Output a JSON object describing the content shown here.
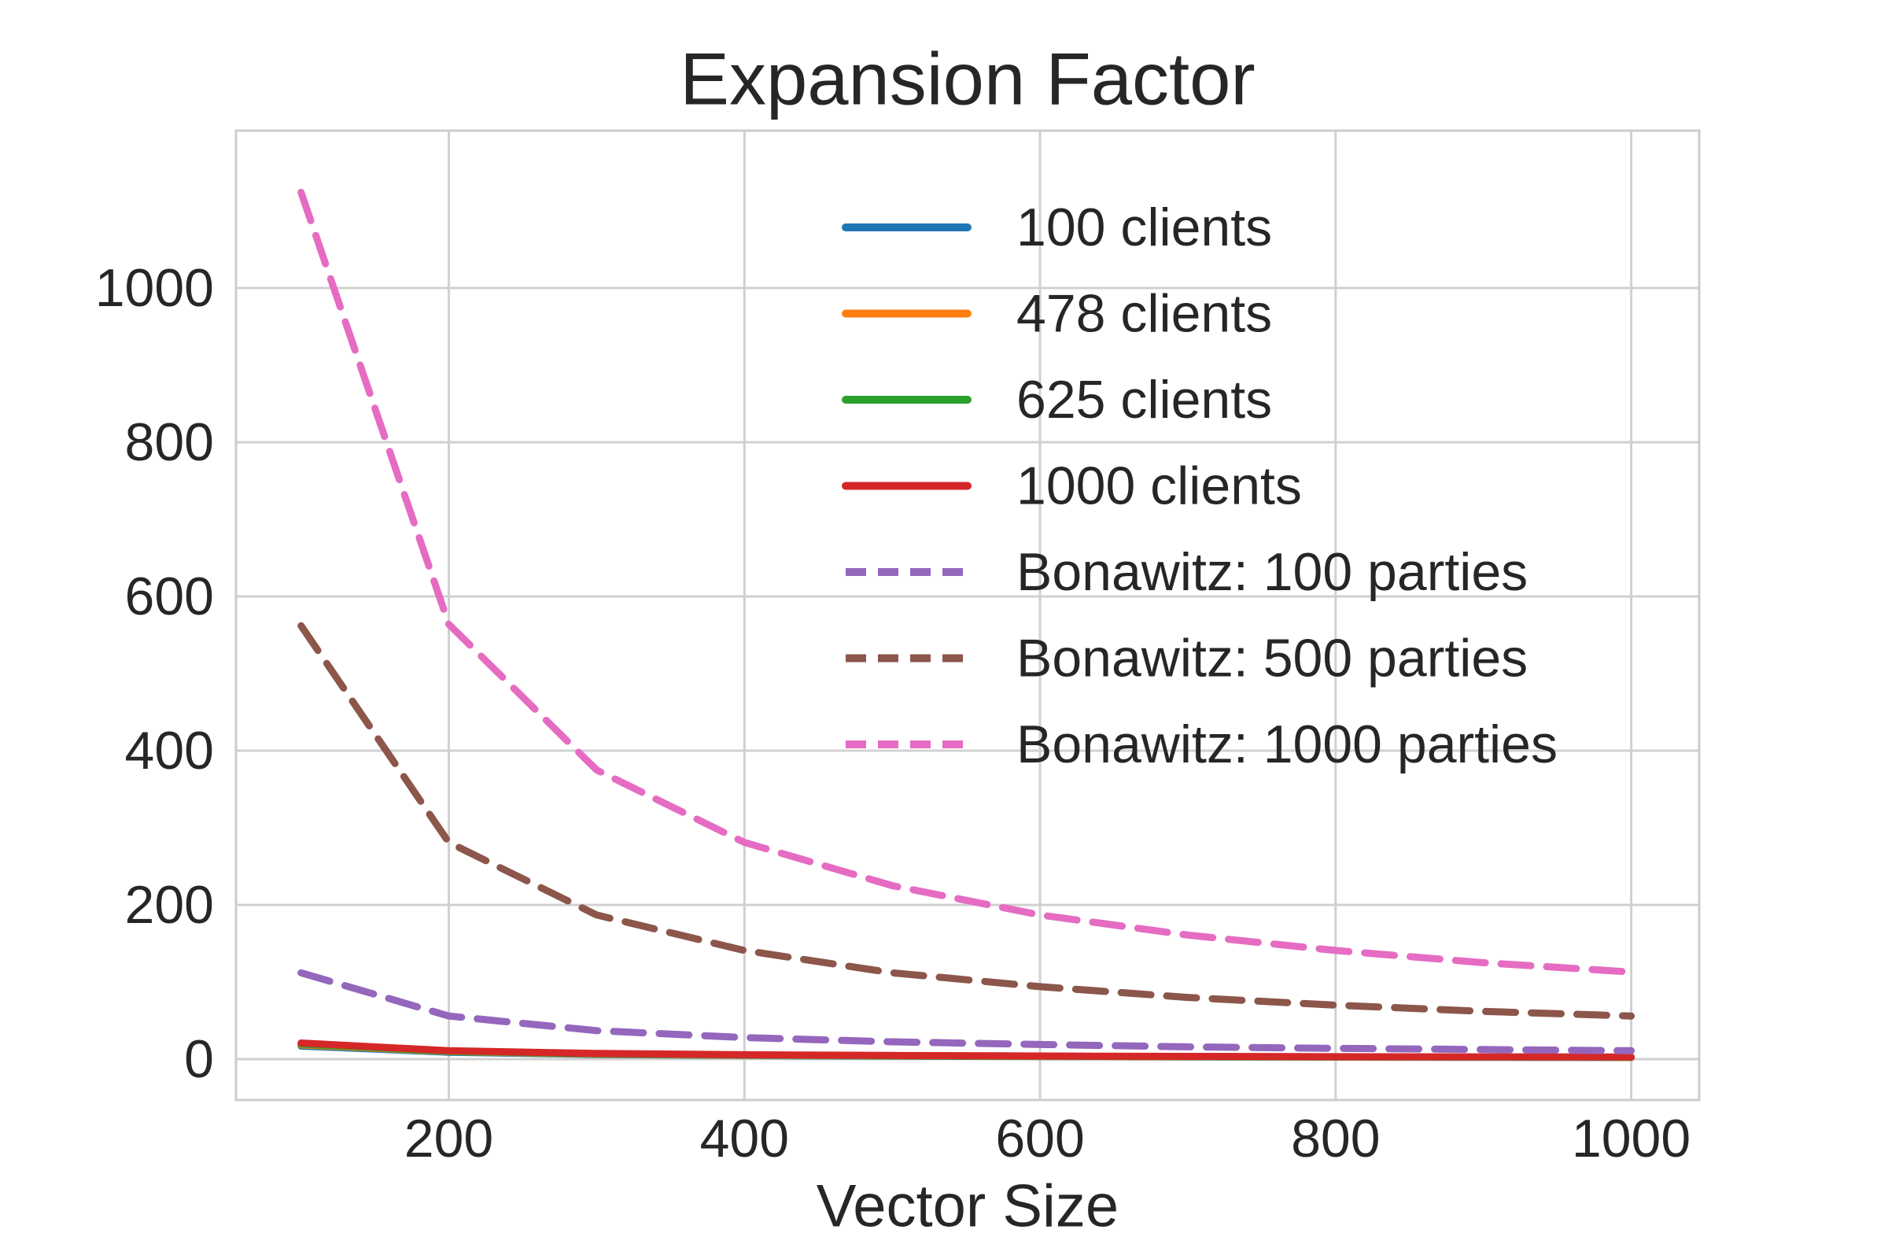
{
  "title": "Expansion Factor",
  "xlabel": "Vector Size",
  "colors": {
    "background": "#ffffff",
    "grid": "#d0d0d0",
    "spine": "#cccccc",
    "text": "#262626",
    "blue": "#1f77b4",
    "orange": "#ff7f0e",
    "green": "#2ca02c",
    "red": "#d62728",
    "purple": "#9467bd",
    "brown": "#8c564b",
    "pink": "#e56cc2"
  },
  "chart_data": {
    "type": "line",
    "title": "Expansion Factor",
    "xlabel": "Vector Size",
    "ylabel": "",
    "grid": true,
    "legend_position": "upper right",
    "x": [
      100,
      200,
      300,
      400,
      500,
      600,
      700,
      800,
      900,
      1000
    ],
    "x_ticks": [
      200,
      400,
      600,
      800,
      1000
    ],
    "y_ticks": [
      0,
      200,
      400,
      600,
      800,
      1000
    ],
    "xlim": [
      56,
      1046
    ],
    "ylim": [
      -53,
      1204
    ],
    "series": [
      {
        "label": "100 clients",
        "color": "#1f77b4",
        "dashed": false,
        "values": [
          17,
          9,
          6.1,
          4.7,
          3.9,
          3.3,
          2.9,
          2.6,
          2.4,
          2.2
        ]
      },
      {
        "label": "478 clients",
        "color": "#ff7f0e",
        "dashed": false,
        "values": [
          18.4,
          9.8,
          6.6,
          5.1,
          4.2,
          3.6,
          3.1,
          2.8,
          2.6,
          2.4
        ]
      },
      {
        "label": "625 clients",
        "color": "#2ca02c",
        "dashed": false,
        "values": [
          19.4,
          10.3,
          7.0,
          5.4,
          4.4,
          3.8,
          3.3,
          3.0,
          2.7,
          2.5
        ]
      },
      {
        "label": "1000 clients",
        "color": "#d62728",
        "dashed": false,
        "values": [
          21,
          11,
          7.5,
          5.8,
          4.8,
          4.1,
          3.6,
          3.2,
          3.0,
          2.8
        ]
      },
      {
        "label": "Bonawitz: 100 parties",
        "color": "#9467bd",
        "dashed": true,
        "values": [
          112,
          56,
          37,
          28,
          22.5,
          19,
          16,
          14,
          12.5,
          11
        ]
      },
      {
        "label": "Bonawitz: 500 parties",
        "color": "#8c564b",
        "dashed": true,
        "values": [
          562,
          281,
          187,
          141,
          112,
          94,
          80,
          70,
          62,
          56
        ]
      },
      {
        "label": "Bonawitz: 1000 parties",
        "color": "#e56cc2",
        "dashed": true,
        "values": [
          1124,
          564,
          375,
          281,
          225,
          187,
          161,
          141,
          125,
          113
        ]
      }
    ]
  }
}
